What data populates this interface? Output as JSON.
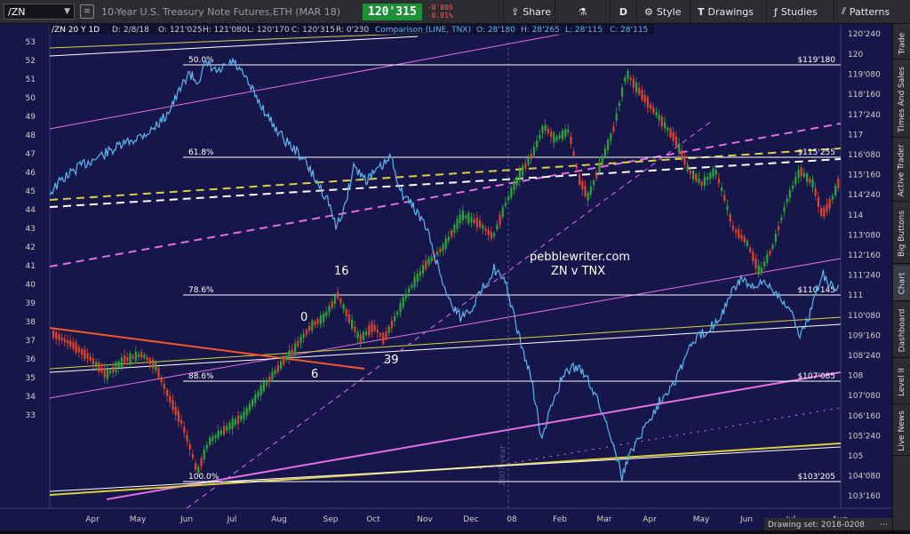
{
  "toolbar": {
    "symbol": "/ZN",
    "description": "10-Year U.S. Treasury Note Futures,ETH (MAR 18)",
    "last_price": "120'315",
    "change_points": "-0'005",
    "change_percent": "-0.01%",
    "share_label": "Share",
    "interval_label": "D",
    "style_label": "Style",
    "drawings_label": "Drawings",
    "studies_label": "Studies",
    "patterns_label": "Patterns"
  },
  "legend": {
    "symbol_line": "/ZN 20 Y 1D",
    "date": "D: 2/8/18",
    "open": "O: 121'025",
    "high": "H: 121'080",
    "low": "L: 120'170",
    "close": "C: 120'315",
    "range": "R: 0'230",
    "comparison": "Comparison (LINE, TNX)",
    "cmp_open": "O: 28'180",
    "cmp_high": "H: 28'265",
    "cmp_low": "L: 28'115",
    "cmp_close": "C: 28'115"
  },
  "left_axis": [
    "53",
    "52",
    "51",
    "50",
    "49",
    "48",
    "47",
    "46",
    "45",
    "44",
    "43",
    "42",
    "41",
    "40",
    "39",
    "38",
    "37",
    "36",
    "35",
    "34",
    "33"
  ],
  "right_axis": [
    "120",
    "119'080",
    "118'160",
    "117'240",
    "117",
    "116'080",
    "115'160",
    "114'240",
    "114",
    "113'080",
    "112'160",
    "111'240",
    "111",
    "110'080",
    "109'160",
    "108'240",
    "108",
    "107'080",
    "106'160",
    "105'240",
    "105",
    "104'080",
    "103'160"
  ],
  "right_axis_top_partial": "120'240",
  "x_axis": [
    "Apr",
    "May",
    "Jun",
    "Jul",
    "Aug",
    "Sep",
    "Oct",
    "Nov",
    "Dec",
    "08",
    "Feb",
    "Mar",
    "Apr",
    "May",
    "Jun",
    "Jul",
    "Aug"
  ],
  "fib_levels": [
    {
      "pct": "50.0%",
      "price": "$119'180"
    },
    {
      "pct": "61.8%",
      "price": "$115'255"
    },
    {
      "pct": "78.6%",
      "price": "$110'145"
    },
    {
      "pct": "88.6%",
      "price": "$107'085"
    },
    {
      "pct": "100.0%",
      "price": "$103'205"
    }
  ],
  "annotations": {
    "watermark_1": "pebblewriter.com",
    "watermark_2": "ZN v TNX",
    "label_16": "16",
    "label_0": "0",
    "label_6": "6",
    "label_39": "39",
    "year_marker": "2007 year"
  },
  "status": {
    "drawing_set": "Drawing set: 2018-0208"
  },
  "sidebar_tabs": [
    "Trade",
    "Times And Sales",
    "Active Trader",
    "Big Buttons",
    "Chart",
    "Dashboard",
    "Level II",
    "Live News"
  ],
  "colors": {
    "background": "#16164a",
    "bull_candle": "#2aa832",
    "bear_candle": "#e0452a",
    "comparison_line": "#5ab7ee",
    "magenta": "#e070e0",
    "yellow": "#d8d040",
    "white": "#ffffff",
    "orange": "#f05a28",
    "price_badge": "#1f8f3a"
  }
}
